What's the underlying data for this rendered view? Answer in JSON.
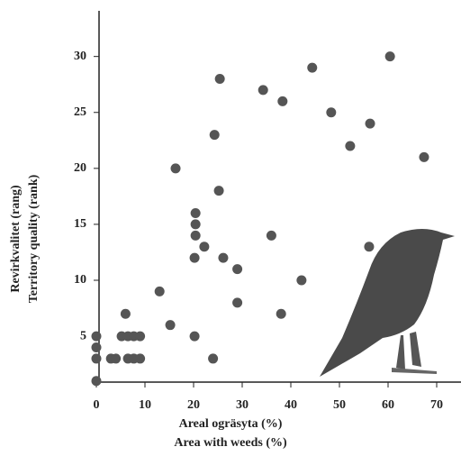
{
  "chart_data": {
    "type": "scatter",
    "xlabel": [
      "Areal ogräsyta (%)",
      "Area with weeds (%)"
    ],
    "ylabel": [
      "Revirkvalitet (rang)",
      "Territory quality (rank)"
    ],
    "color": "#555555",
    "xlim": [
      0,
      75
    ],
    "ylim": [
      0.9,
      34
    ],
    "xticks": [
      0,
      10,
      20,
      30,
      40,
      50,
      60,
      70
    ],
    "yticks": [
      5,
      10,
      15,
      20,
      25,
      30
    ],
    "x": [
      0,
      0,
      0,
      0,
      3,
      4,
      6,
      5.2,
      6.5,
      7.7,
      9,
      6.5,
      7.7,
      9,
      13,
      15.2,
      16.3,
      20.2,
      20.4,
      20.4,
      20.4,
      20.2,
      22.2,
      24,
      24.3,
      25.4,
      25.2,
      26.1,
      29,
      29,
      34.3,
      36,
      38,
      38.3,
      42.2,
      44.4,
      48.3,
      52.2,
      56.3,
      56.1,
      60.4,
      67.4
    ],
    "y": [
      5,
      4,
      3,
      1,
      3,
      3,
      7,
      5,
      5,
      5,
      5,
      3,
      3,
      3,
      9,
      6,
      20,
      5,
      16,
      15,
      14,
      12,
      13,
      3,
      23,
      28,
      18,
      12,
      11,
      8,
      27,
      14,
      7,
      26,
      10,
      29,
      25,
      22,
      24,
      13,
      30,
      21
    ]
  }
}
